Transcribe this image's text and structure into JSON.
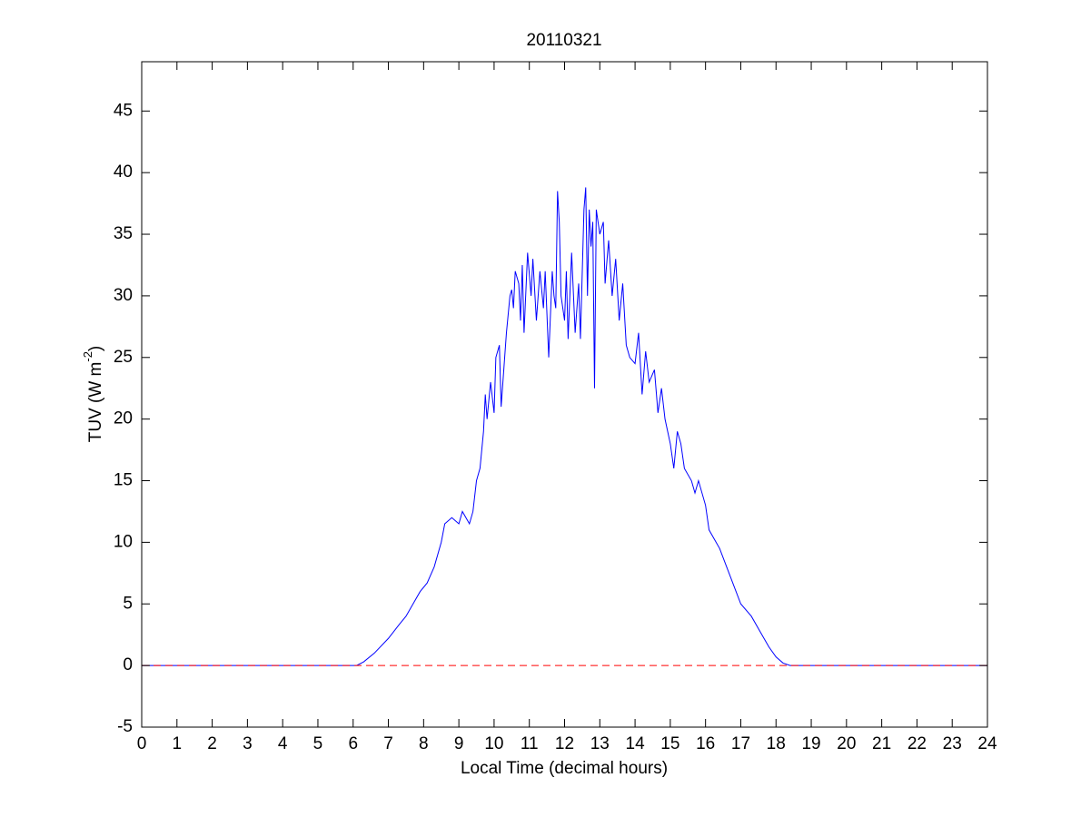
{
  "chart_data": {
    "type": "line",
    "title": "20110321",
    "xlabel": "Local Time (decimal hours)",
    "ylabel": [
      "TUV (W m",
      "-2",
      ")"
    ],
    "xlim": [
      0,
      24
    ],
    "ylim": [
      -5,
      49
    ],
    "xticks": [
      0,
      1,
      2,
      3,
      4,
      5,
      6,
      7,
      8,
      9,
      10,
      11,
      12,
      13,
      14,
      15,
      16,
      17,
      18,
      19,
      20,
      21,
      22,
      23,
      24
    ],
    "yticks": [
      -5,
      0,
      5,
      10,
      15,
      20,
      25,
      30,
      35,
      40,
      45
    ],
    "series": [
      {
        "color": "#0000ff",
        "style": "solid",
        "x": [
          0,
          6.1,
          6.3,
          6.6,
          7,
          7.3,
          7.5,
          7.7,
          7.9,
          8.1,
          8.3,
          8.5,
          8.6,
          8.8,
          9.0,
          9.1,
          9.3,
          9.4,
          9.5,
          9.6,
          9.7,
          9.75,
          9.8,
          9.9,
          10.0,
          10.05,
          10.15,
          10.2,
          10.3,
          10.35,
          10.45,
          10.5,
          10.55,
          10.6,
          10.7,
          10.75,
          10.8,
          10.85,
          10.95,
          11.05,
          11.1,
          11.2,
          11.3,
          11.4,
          11.45,
          11.55,
          11.65,
          11.7,
          11.75,
          11.8,
          11.85,
          11.9,
          12.0,
          12.05,
          12.1,
          12.2,
          12.3,
          12.4,
          12.45,
          12.55,
          12.6,
          12.65,
          12.7,
          12.75,
          12.8,
          12.85,
          12.9,
          13.0,
          13.1,
          13.15,
          13.25,
          13.35,
          13.45,
          13.55,
          13.65,
          13.75,
          13.85,
          14.0,
          14.1,
          14.2,
          14.3,
          14.4,
          14.55,
          14.65,
          14.75,
          14.85,
          15.0,
          15.1,
          15.2,
          15.3,
          15.4,
          15.6,
          15.7,
          15.8,
          16.0,
          16.1,
          16.3,
          16.4,
          16.6,
          16.8,
          17.0,
          17.3,
          17.6,
          17.8,
          18.0,
          18.2,
          18.4,
          24
        ],
        "values": [
          0,
          0,
          0.3,
          1,
          2.2,
          3.3,
          4,
          5,
          6,
          6.7,
          8,
          10,
          11.5,
          12,
          11.5,
          12.5,
          11.5,
          12.5,
          15,
          16,
          19,
          22,
          20,
          23,
          20.5,
          25,
          26,
          21,
          25,
          27,
          30,
          30.5,
          29,
          32,
          31,
          28,
          32.5,
          27,
          33.5,
          30,
          33,
          28,
          32,
          29,
          32,
          25,
          32,
          30,
          29,
          38.5,
          36,
          30,
          28,
          32,
          26.5,
          33.5,
          27,
          31,
          26.5,
          37,
          38.8,
          30,
          37,
          34,
          36,
          22.5,
          37,
          35,
          36,
          31,
          34.5,
          30,
          33,
          28,
          31,
          26,
          25,
          24.5,
          27,
          22,
          25.5,
          23,
          24,
          20.5,
          22.5,
          20,
          18,
          16,
          19,
          18,
          16,
          15,
          14,
          15,
          13,
          11,
          10,
          9.5,
          8,
          6.5,
          5,
          4,
          2.5,
          1.5,
          0.7,
          0.2,
          0,
          0
        ]
      },
      {
        "color": "#ff0000",
        "style": "dashed",
        "x": [
          0,
          24
        ],
        "values": [
          0,
          0
        ]
      }
    ]
  }
}
